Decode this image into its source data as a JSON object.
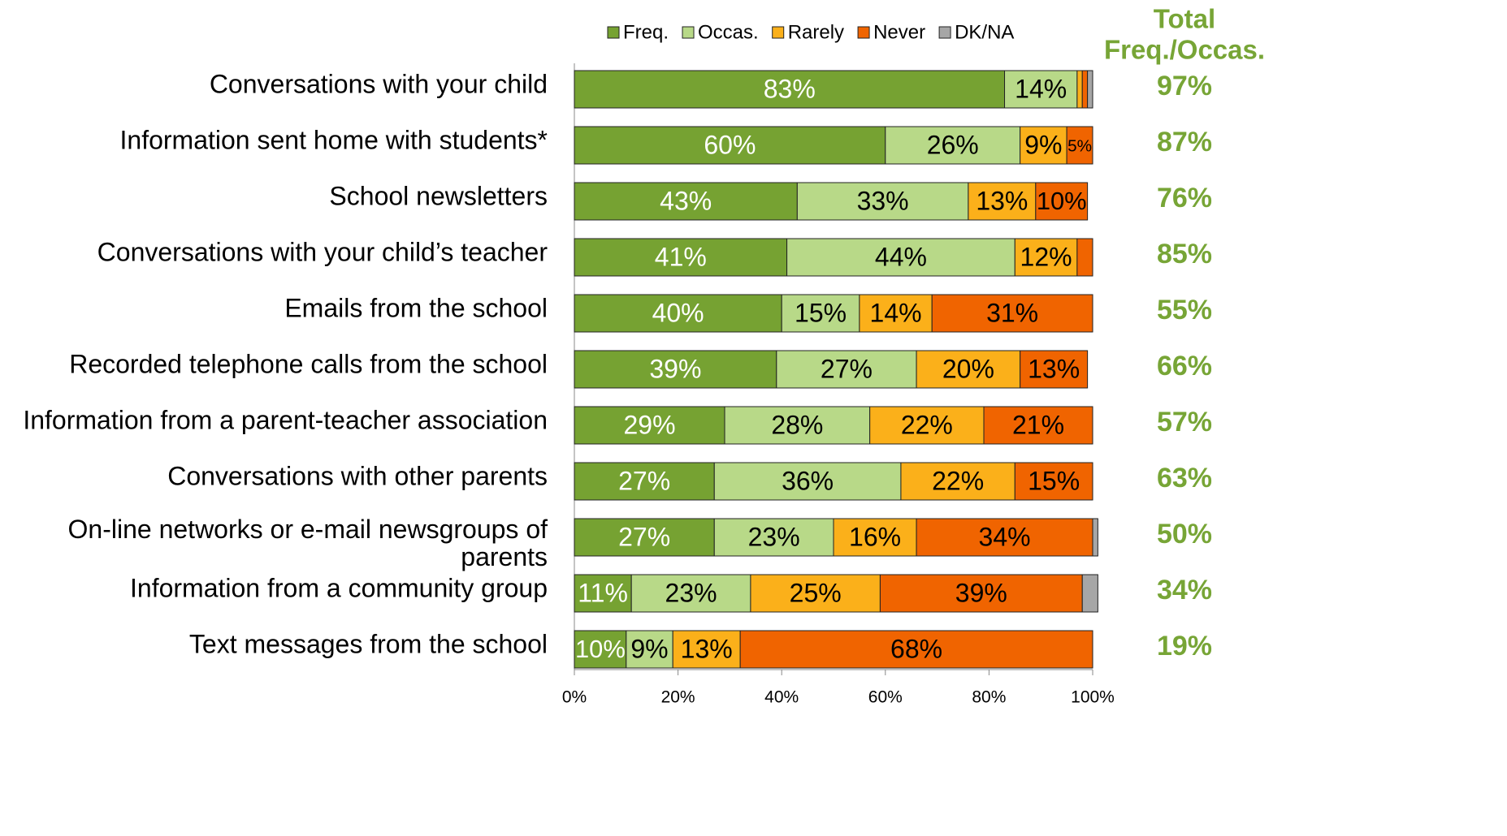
{
  "chart_data": {
    "type": "stacked_barh",
    "categories": [
      "Conversations with your child",
      "Information sent home with students*",
      "School newsletters",
      "Conversations with your child’s teacher",
      "Emails from the school",
      "Recorded telephone calls from the school",
      "Information from a parent-teacher association",
      "Conversations with other parents",
      "On-line networks or e-mail newsgroups of parents",
      "Information from a community group",
      "Text messages from the school"
    ],
    "series": [
      {
        "name": "Freq.",
        "color": "#76a232",
        "values": [
          83,
          60,
          43,
          41,
          40,
          39,
          29,
          27,
          27,
          11,
          10
        ],
        "value_labels": [
          "83%",
          "60%",
          "43%",
          "41%",
          "40%",
          "39%",
          "29%",
          "27%",
          "27%",
          "11%",
          "10%"
        ]
      },
      {
        "name": "Occas.",
        "color": "#b8d988",
        "values": [
          14,
          26,
          33,
          44,
          15,
          27,
          28,
          36,
          23,
          23,
          9
        ],
        "value_labels": [
          "14%",
          "26%",
          "33%",
          "44%",
          "15%",
          "27%",
          "28%",
          "36%",
          "23%",
          "23%",
          "9%"
        ]
      },
      {
        "name": "Rarely",
        "color": "#fbb01a",
        "values": [
          1,
          9,
          13,
          12,
          14,
          20,
          22,
          22,
          16,
          25,
          13
        ],
        "value_labels": [
          null,
          "9%",
          "13%",
          "12%",
          "14%",
          "20%",
          "22%",
          "22%",
          "16%",
          "25%",
          "13%"
        ]
      },
      {
        "name": "Never",
        "color": "#f06400",
        "values": [
          1,
          5,
          10,
          3,
          31,
          13,
          21,
          15,
          34,
          39,
          68
        ],
        "value_labels": [
          null,
          "5%",
          "10%",
          null,
          "31%",
          "13%",
          "21%",
          "15%",
          "34%",
          "39%",
          "68%"
        ]
      },
      {
        "name": "DK/NA",
        "color": "#a6a6a6",
        "values": [
          1,
          0,
          0,
          0,
          0,
          0,
          0,
          0,
          1,
          3,
          0
        ],
        "value_labels": [
          null,
          null,
          null,
          null,
          null,
          null,
          null,
          null,
          null,
          null,
          null
        ]
      }
    ],
    "xlim": [
      0,
      100
    ],
    "xticks": [
      {
        "value": 0,
        "label": "0%"
      },
      {
        "value": 20,
        "label": "20%"
      },
      {
        "value": 40,
        "label": "40%"
      },
      {
        "value": 60,
        "label": "60%"
      },
      {
        "value": 80,
        "label": "80%"
      },
      {
        "value": 100,
        "label": "100%"
      }
    ],
    "legend": "top",
    "totals": {
      "title": [
        "Total",
        "Freq./Occas."
      ],
      "color": "#77a536",
      "values": [
        97,
        87,
        76,
        85,
        55,
        66,
        57,
        63,
        50,
        34,
        19
      ],
      "value_labels": [
        "97%",
        "87%",
        "76%",
        "85%",
        "55%",
        "66%",
        "57%",
        "63%",
        "50%",
        "34%",
        "19%"
      ]
    }
  }
}
